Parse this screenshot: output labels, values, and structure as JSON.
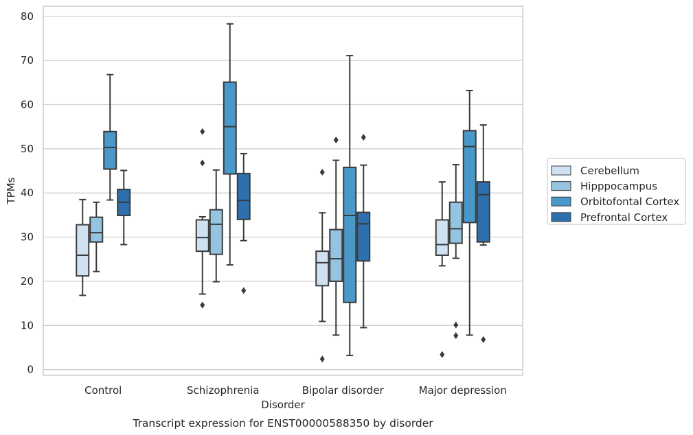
{
  "chart_data": {
    "type": "box",
    "caption": "Transcript expression for ENST00000588350 by disorder",
    "xlabel": "Disorder",
    "ylabel": "TPMs",
    "ylim": [
      -1.3,
      82.3
    ],
    "yticks": [
      0,
      10,
      20,
      30,
      40,
      50,
      60,
      70,
      80
    ],
    "grid": true,
    "legend_position": "right",
    "categories": [
      "Control",
      "Schizophrenia",
      "Bipolar disorder",
      "Major depression"
    ],
    "series": [
      {
        "name": "Cerebellum",
        "color": "#d0e1f2",
        "boxes": [
          {
            "whisker_low": 16.8,
            "q1": 21.2,
            "median": 25.9,
            "q3": 32.8,
            "whisker_high": 38.5,
            "outliers": []
          },
          {
            "whisker_low": 17.1,
            "q1": 26.8,
            "median": 29.9,
            "q3": 33.9,
            "whisker_high": 34.6,
            "outliers": [
              53.9,
              46.8,
              14.6
            ]
          },
          {
            "whisker_low": 10.9,
            "q1": 19.0,
            "median": 24.2,
            "q3": 26.8,
            "whisker_high": 35.5,
            "outliers": [
              44.7,
              2.4
            ]
          },
          {
            "whisker_low": 23.5,
            "q1": 25.9,
            "median": 28.3,
            "q3": 33.9,
            "whisker_high": 42.5,
            "outliers": [
              3.4
            ]
          }
        ]
      },
      {
        "name": "Hipppocampus",
        "color": "#94c4df",
        "boxes": [
          {
            "whisker_low": 22.2,
            "q1": 28.9,
            "median": 31.0,
            "q3": 34.5,
            "whisker_high": 37.9,
            "outliers": []
          },
          {
            "whisker_low": 19.9,
            "q1": 26.1,
            "median": 32.9,
            "q3": 36.2,
            "whisker_high": 45.2,
            "outliers": []
          },
          {
            "whisker_low": 7.8,
            "q1": 20.0,
            "median": 25.1,
            "q3": 31.7,
            "whisker_high": 47.4,
            "outliers": [
              52.0
            ]
          },
          {
            "whisker_low": 25.2,
            "q1": 28.6,
            "median": 31.9,
            "q3": 37.9,
            "whisker_high": 46.4,
            "outliers": [
              10.1,
              7.7
            ]
          }
        ]
      },
      {
        "name": "Orbitofontal Cortex",
        "color": "#4a98c9",
        "boxes": [
          {
            "whisker_low": 38.4,
            "q1": 45.4,
            "median": 50.3,
            "q3": 53.9,
            "whisker_high": 66.8,
            "outliers": []
          },
          {
            "whisker_low": 23.7,
            "q1": 44.3,
            "median": 55.0,
            "q3": 65.1,
            "whisker_high": 78.3,
            "outliers": []
          },
          {
            "whisker_low": 3.2,
            "q1": 15.2,
            "median": 34.9,
            "q3": 45.8,
            "whisker_high": 71.1,
            "outliers": []
          },
          {
            "whisker_low": 7.8,
            "q1": 33.3,
            "median": 50.5,
            "q3": 54.1,
            "whisker_high": 63.2,
            "outliers": []
          }
        ]
      },
      {
        "name": "Prefrontal Cortex",
        "color": "#2e6fad",
        "boxes": [
          {
            "whisker_low": 28.3,
            "q1": 34.9,
            "median": 37.9,
            "q3": 40.8,
            "whisker_high": 45.1,
            "outliers": []
          },
          {
            "whisker_low": 29.2,
            "q1": 34.0,
            "median": 38.3,
            "q3": 44.4,
            "whisker_high": 48.9,
            "outliers": [
              17.9
            ]
          },
          {
            "whisker_low": 9.5,
            "q1": 24.6,
            "median": 33.0,
            "q3": 35.6,
            "whisker_high": 46.3,
            "outliers": [
              52.6
            ]
          },
          {
            "whisker_low": 28.2,
            "q1": 28.9,
            "median": 39.6,
            "q3": 42.5,
            "whisker_high": 55.4,
            "outliers": [
              6.8
            ]
          }
        ]
      }
    ]
  }
}
